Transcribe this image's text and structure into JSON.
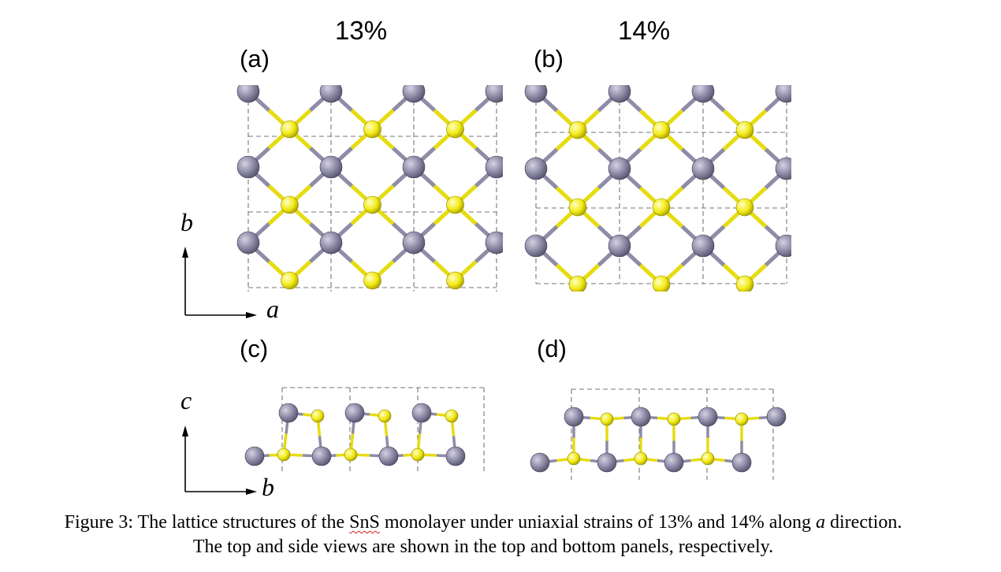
{
  "columns": {
    "left_heading": "13%",
    "right_heading": "14%"
  },
  "panels": {
    "a": "(a)",
    "b": "(b)",
    "c": "(c)",
    "d": "(d)"
  },
  "axes": {
    "top_vertical": "b",
    "top_horizontal": "a",
    "bottom_vertical": "c",
    "bottom_horizontal": "b"
  },
  "atoms": {
    "sn_name": "sn-atom",
    "s_name": "s-atom",
    "sn_color": "#8a87a4",
    "s_color": "#f3ea14",
    "bond_color_sn": "#8e8ca6",
    "bond_color_s": "#e6dc10",
    "cell_line_color": "#777777"
  },
  "caption": {
    "line1_prefix": "Figure 3: The lattice structures of the ",
    "line1_material": "SnS",
    "line1_middle": " monolayer under uniaxial strains of 13% and 14% along ",
    "line1_axis": "a",
    "line1_suffix": " direction.",
    "line2": "The top and side views are shown in the top and bottom panels, respectively."
  }
}
